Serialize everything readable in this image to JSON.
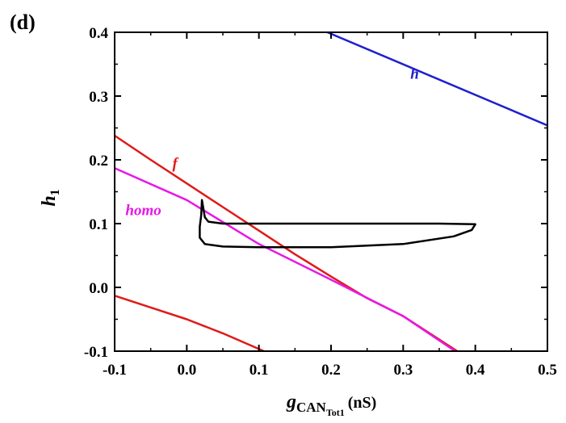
{
  "panel_label": "(d)",
  "chart_data": {
    "type": "line",
    "title": "",
    "xlabel": "g_CAN_Tot1 (nS)",
    "xlabel_parts": {
      "main": "g",
      "sub": "CAN",
      "subsub": "Tot1",
      "unit": "(nS)"
    },
    "ylabel": "h1",
    "ylabel_parts": {
      "main": "h",
      "sub": "1"
    },
    "xlim": [
      -0.1,
      0.5
    ],
    "ylim": [
      -0.1,
      0.4
    ],
    "xticks": [
      -0.1,
      0.0,
      0.1,
      0.2,
      0.3,
      0.4,
      0.5
    ],
    "xtick_labels": [
      "-0.1",
      "0.0",
      "0.1",
      "0.2",
      "0.3",
      "0.4",
      "0.5"
    ],
    "yticks": [
      -0.1,
      0.0,
      0.1,
      0.2,
      0.3,
      0.4
    ],
    "ytick_labels": [
      "-0.1",
      "0.0",
      "0.1",
      "0.2",
      "0.3",
      "0.4"
    ],
    "grid": false,
    "series": [
      {
        "name": "h",
        "label": "h",
        "color": "#1f1fd0",
        "points": [
          [
            0.195,
            0.4
          ],
          [
            0.5,
            0.254
          ]
        ]
      },
      {
        "name": "f-upper",
        "label": "f",
        "color": "#e01a1a",
        "points": [
          [
            -0.1,
            0.238
          ],
          [
            -0.05,
            0.2
          ],
          [
            0.0,
            0.163
          ],
          [
            0.05,
            0.126
          ],
          [
            0.1,
            0.089
          ],
          [
            0.15,
            0.052
          ],
          [
            0.2,
            0.017
          ],
          [
            0.25,
            -0.017
          ],
          [
            0.3,
            -0.045
          ],
          [
            0.375,
            -0.1
          ]
        ]
      },
      {
        "name": "f-lower",
        "label": "",
        "color": "#e01a1a",
        "points": [
          [
            -0.1,
            -0.013
          ],
          [
            0.0,
            -0.05
          ],
          [
            0.05,
            -0.072
          ],
          [
            0.107,
            -0.1
          ]
        ]
      },
      {
        "name": "homo",
        "label": "homo",
        "color": "#e619e6",
        "points": [
          [
            -0.1,
            0.187
          ],
          [
            0.0,
            0.137
          ],
          [
            0.1,
            0.068
          ],
          [
            0.2,
            0.012
          ],
          [
            0.3,
            -0.045
          ],
          [
            0.372,
            -0.1
          ]
        ]
      },
      {
        "name": "orbit",
        "label": "",
        "color": "#000000",
        "points": [
          [
            0.021,
            0.137
          ],
          [
            0.025,
            0.11
          ],
          [
            0.03,
            0.103
          ],
          [
            0.05,
            0.1
          ],
          [
            0.2,
            0.1
          ],
          [
            0.35,
            0.1
          ],
          [
            0.4,
            0.099
          ],
          [
            0.395,
            0.09
          ],
          [
            0.37,
            0.08
          ],
          [
            0.3,
            0.068
          ],
          [
            0.2,
            0.063
          ],
          [
            0.1,
            0.063
          ],
          [
            0.05,
            0.064
          ],
          [
            0.025,
            0.068
          ],
          [
            0.018,
            0.078
          ],
          [
            0.018,
            0.095
          ],
          [
            0.02,
            0.113
          ],
          [
            0.021,
            0.137
          ]
        ]
      }
    ],
    "annotations": [
      {
        "text": "h",
        "x": 0.31,
        "y": 0.327,
        "color": "#1f1fd0"
      },
      {
        "text": "f",
        "x": -0.02,
        "y": 0.187,
        "color": "#e01a1a"
      },
      {
        "text": "homo",
        "x": -0.085,
        "y": 0.113,
        "color": "#e619e6"
      }
    ]
  }
}
